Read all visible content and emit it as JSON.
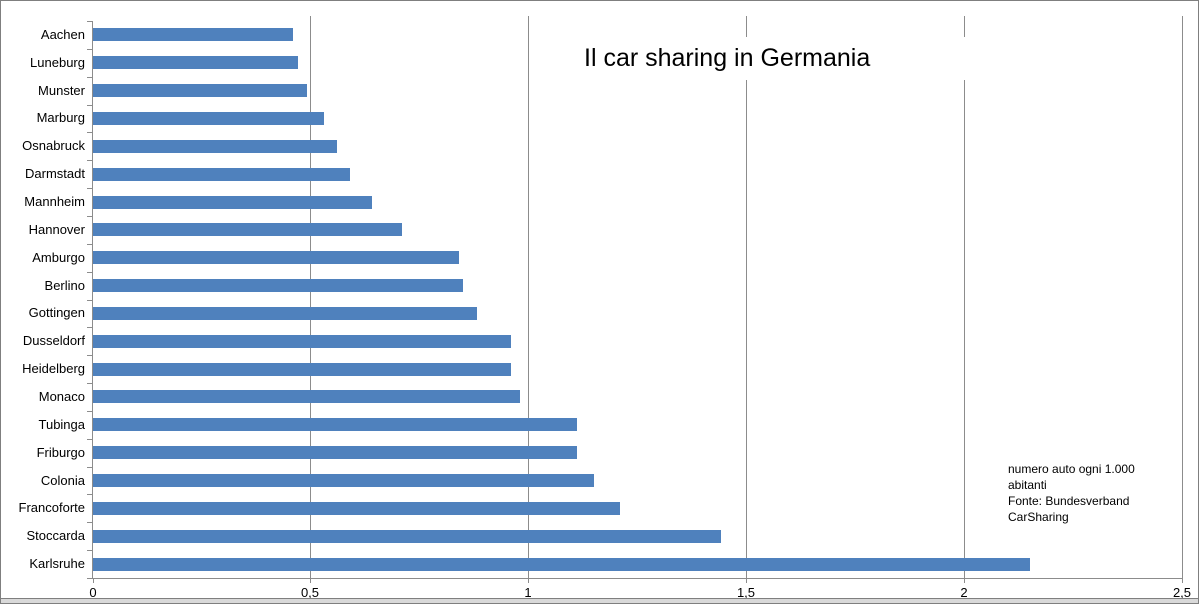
{
  "chart_data": {
    "type": "bar",
    "orientation": "horizontal",
    "title": "Il car sharing in Germania",
    "categories": [
      "Aachen",
      "Luneburg",
      "Munster",
      "Marburg",
      "Osnabruck",
      "Darmstadt",
      "Mannheim",
      "Hannover",
      "Amburgo",
      "Berlino",
      "Gottingen",
      "Dusseldorf",
      "Heidelberg",
      "Monaco",
      "Tubinga",
      "Friburgo",
      "Colonia",
      "Francoforte",
      "Stoccarda",
      "Karlsruhe"
    ],
    "values": [
      0.46,
      0.47,
      0.49,
      0.53,
      0.56,
      0.59,
      0.64,
      0.71,
      0.84,
      0.85,
      0.88,
      0.96,
      0.96,
      0.98,
      1.11,
      1.11,
      1.15,
      1.21,
      1.44,
      2.15
    ],
    "xlabel": "",
    "ylabel": "",
    "xlim": [
      0,
      2.5
    ],
    "x_ticks": {
      "values": [
        0,
        0.5,
        1,
        1.5,
        2,
        2.5
      ],
      "labels": [
        "0",
        "0,5",
        "1",
        "1,5",
        "2",
        "2,5"
      ]
    },
    "grid": true,
    "legend": false,
    "annotation": {
      "lines": [
        "numero auto ogni 1.000",
        "abitanti",
        "Fonte: Bundesverband",
        "CarSharing"
      ]
    },
    "colors": {
      "bar": "#4f81bd",
      "gridline": "#8c8c8c",
      "axis": "#8c8c8c",
      "text": "#000000",
      "background": "#ffffff",
      "border": "#7f7f7f"
    }
  }
}
